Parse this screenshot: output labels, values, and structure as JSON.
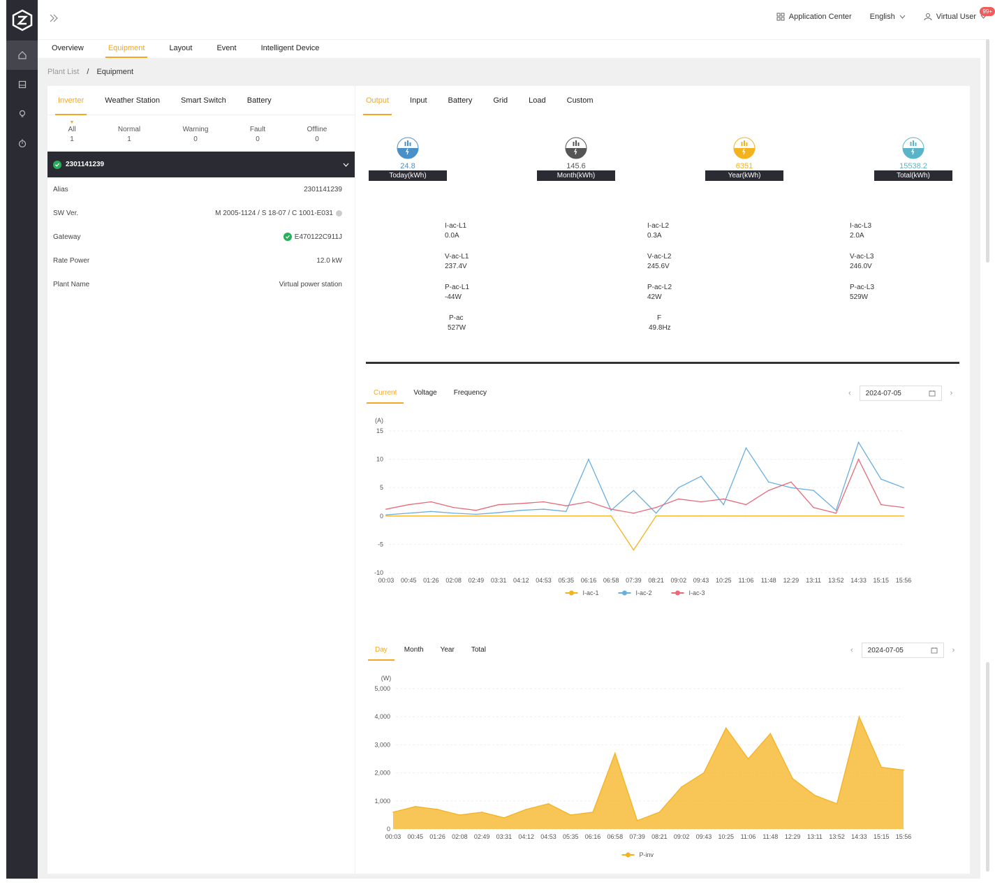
{
  "header": {
    "app_center": "Application Center",
    "language": "English",
    "user": "Virtual User",
    "notification_badge": "99+"
  },
  "main_tabs": [
    "Overview",
    "Equipment",
    "Layout",
    "Event",
    "Intelligent Device"
  ],
  "breadcrumb": {
    "parent": "Plant List",
    "separator": "/",
    "current": "Equipment"
  },
  "device_types": [
    "Inverter",
    "Weather Station",
    "Smart Switch",
    "Battery"
  ],
  "status_counts": [
    {
      "label": "All",
      "count": "1"
    },
    {
      "label": "Normal",
      "count": "1"
    },
    {
      "label": "Warning",
      "count": "0"
    },
    {
      "label": "Fault",
      "count": "0"
    },
    {
      "label": "Offline",
      "count": "0"
    }
  ],
  "device": {
    "serial": "2301141239",
    "properties": [
      {
        "label": "Alias",
        "value": "2301141239"
      },
      {
        "label": "SW Ver.",
        "value": "M 2005-1124 / S  18-07 / C 1001-E031"
      },
      {
        "label": "Gateway",
        "value": "E470122C911J"
      },
      {
        "label": "Rate Power",
        "value": "12.0 kW"
      },
      {
        "label": "Plant Name",
        "value": "Virtual power station"
      }
    ]
  },
  "detail_tabs": [
    "Output",
    "Input",
    "Battery",
    "Grid",
    "Load",
    "Custom"
  ],
  "energy_cards": [
    {
      "value": "24.8",
      "label": "Today(kWh)",
      "color": "#4a90c8"
    },
    {
      "value": "145.6",
      "label": "Month(kWh)",
      "color": "#555555"
    },
    {
      "value": "6351",
      "label": "Year(kWh)",
      "color": "#f5b21f"
    },
    {
      "value": "15538.2",
      "label": "Total(kWh)",
      "color": "#5ab4c8"
    }
  ],
  "measurements": {
    "col1": [
      {
        "label": "I-ac-L1",
        "value": "0.0A"
      },
      {
        "label": "V-ac-L1",
        "value": "237.4V"
      },
      {
        "label": "P-ac-L1",
        "value": "-44W"
      },
      {
        "label": "P-ac",
        "value": "527W"
      }
    ],
    "col2": [
      {
        "label": "I-ac-L2",
        "value": "0.3A"
      },
      {
        "label": "V-ac-L2",
        "value": "245.6V"
      },
      {
        "label": "P-ac-L2",
        "value": "42W"
      },
      {
        "label": "F",
        "value": "49.8Hz"
      }
    ],
    "col3": [
      {
        "label": "I-ac-L3",
        "value": "2.0A"
      },
      {
        "label": "V-ac-L3",
        "value": "246.0V"
      },
      {
        "label": "P-ac-L3",
        "value": "529W"
      }
    ]
  },
  "current_chart": {
    "tabs": [
      "Current",
      "Voltage",
      "Frequency"
    ],
    "date": "2024-07-05"
  },
  "power_chart": {
    "tabs": [
      "Day",
      "Month",
      "Year",
      "Total"
    ],
    "date": "2024-07-05"
  },
  "chart_data": [
    {
      "type": "line",
      "ylabel": "(A)",
      "ylim": [
        -10,
        15
      ],
      "yticks": [
        "15",
        "10",
        "5",
        "0",
        "-5",
        "-10"
      ],
      "x": [
        "00:03",
        "00:45",
        "01:26",
        "02:08",
        "02:49",
        "03:31",
        "04:12",
        "04:53",
        "05:35",
        "06:16",
        "06:58",
        "07:39",
        "08:21",
        "09:02",
        "09:43",
        "10:25",
        "11:06",
        "11:48",
        "12:29",
        "13:11",
        "13:52",
        "14:33",
        "15:15",
        "15:56"
      ],
      "series": [
        {
          "name": "I-ac-1",
          "color": "#f5b21f",
          "values": [
            0,
            0,
            0,
            0,
            0,
            0,
            0,
            0,
            0,
            0,
            0,
            -6,
            0,
            0,
            0,
            0,
            0,
            0,
            0,
            0,
            0,
            0,
            0,
            0
          ]
        },
        {
          "name": "I-ac-2",
          "color": "#6aaee0",
          "values": [
            0.2,
            0.5,
            0.8,
            0.5,
            0.3,
            0.6,
            1,
            1.2,
            0.8,
            10,
            1,
            4.5,
            0.5,
            5,
            7,
            2,
            12,
            6,
            5,
            4.5,
            1,
            13,
            6.5,
            5
          ]
        },
        {
          "name": "I-ac-3",
          "color": "#e86a7a",
          "values": [
            1.2,
            2,
            2.5,
            1.5,
            1,
            2,
            2.2,
            2.5,
            1.8,
            2.5,
            1.2,
            0.5,
            1.5,
            3,
            2.5,
            3,
            2,
            4.5,
            6,
            1.5,
            0.5,
            10,
            2,
            1.5
          ]
        }
      ],
      "legend": "bottom"
    },
    {
      "type": "area",
      "ylabel": "(W)",
      "ylim": [
        0,
        5000
      ],
      "yticks": [
        "5,000",
        "4,000",
        "3,000",
        "2,000",
        "1,000",
        "0"
      ],
      "x": [
        "00:03",
        "00:45",
        "01:26",
        "02:08",
        "02:49",
        "03:31",
        "04:12",
        "04:53",
        "05:35",
        "06:16",
        "06:58",
        "07:39",
        "08:21",
        "09:02",
        "09:43",
        "10:25",
        "11:06",
        "11:48",
        "12:29",
        "13:11",
        "13:52",
        "14:33",
        "15:15",
        "15:56"
      ],
      "series": [
        {
          "name": "P-inv",
          "color": "#f5b21f",
          "values": [
            600,
            800,
            700,
            500,
            600,
            400,
            700,
            900,
            500,
            600,
            2700,
            300,
            600,
            1500,
            2000,
            3600,
            2500,
            3400,
            1800,
            1200,
            900,
            4000,
            2200,
            2100
          ]
        }
      ],
      "legend": "bottom"
    }
  ]
}
